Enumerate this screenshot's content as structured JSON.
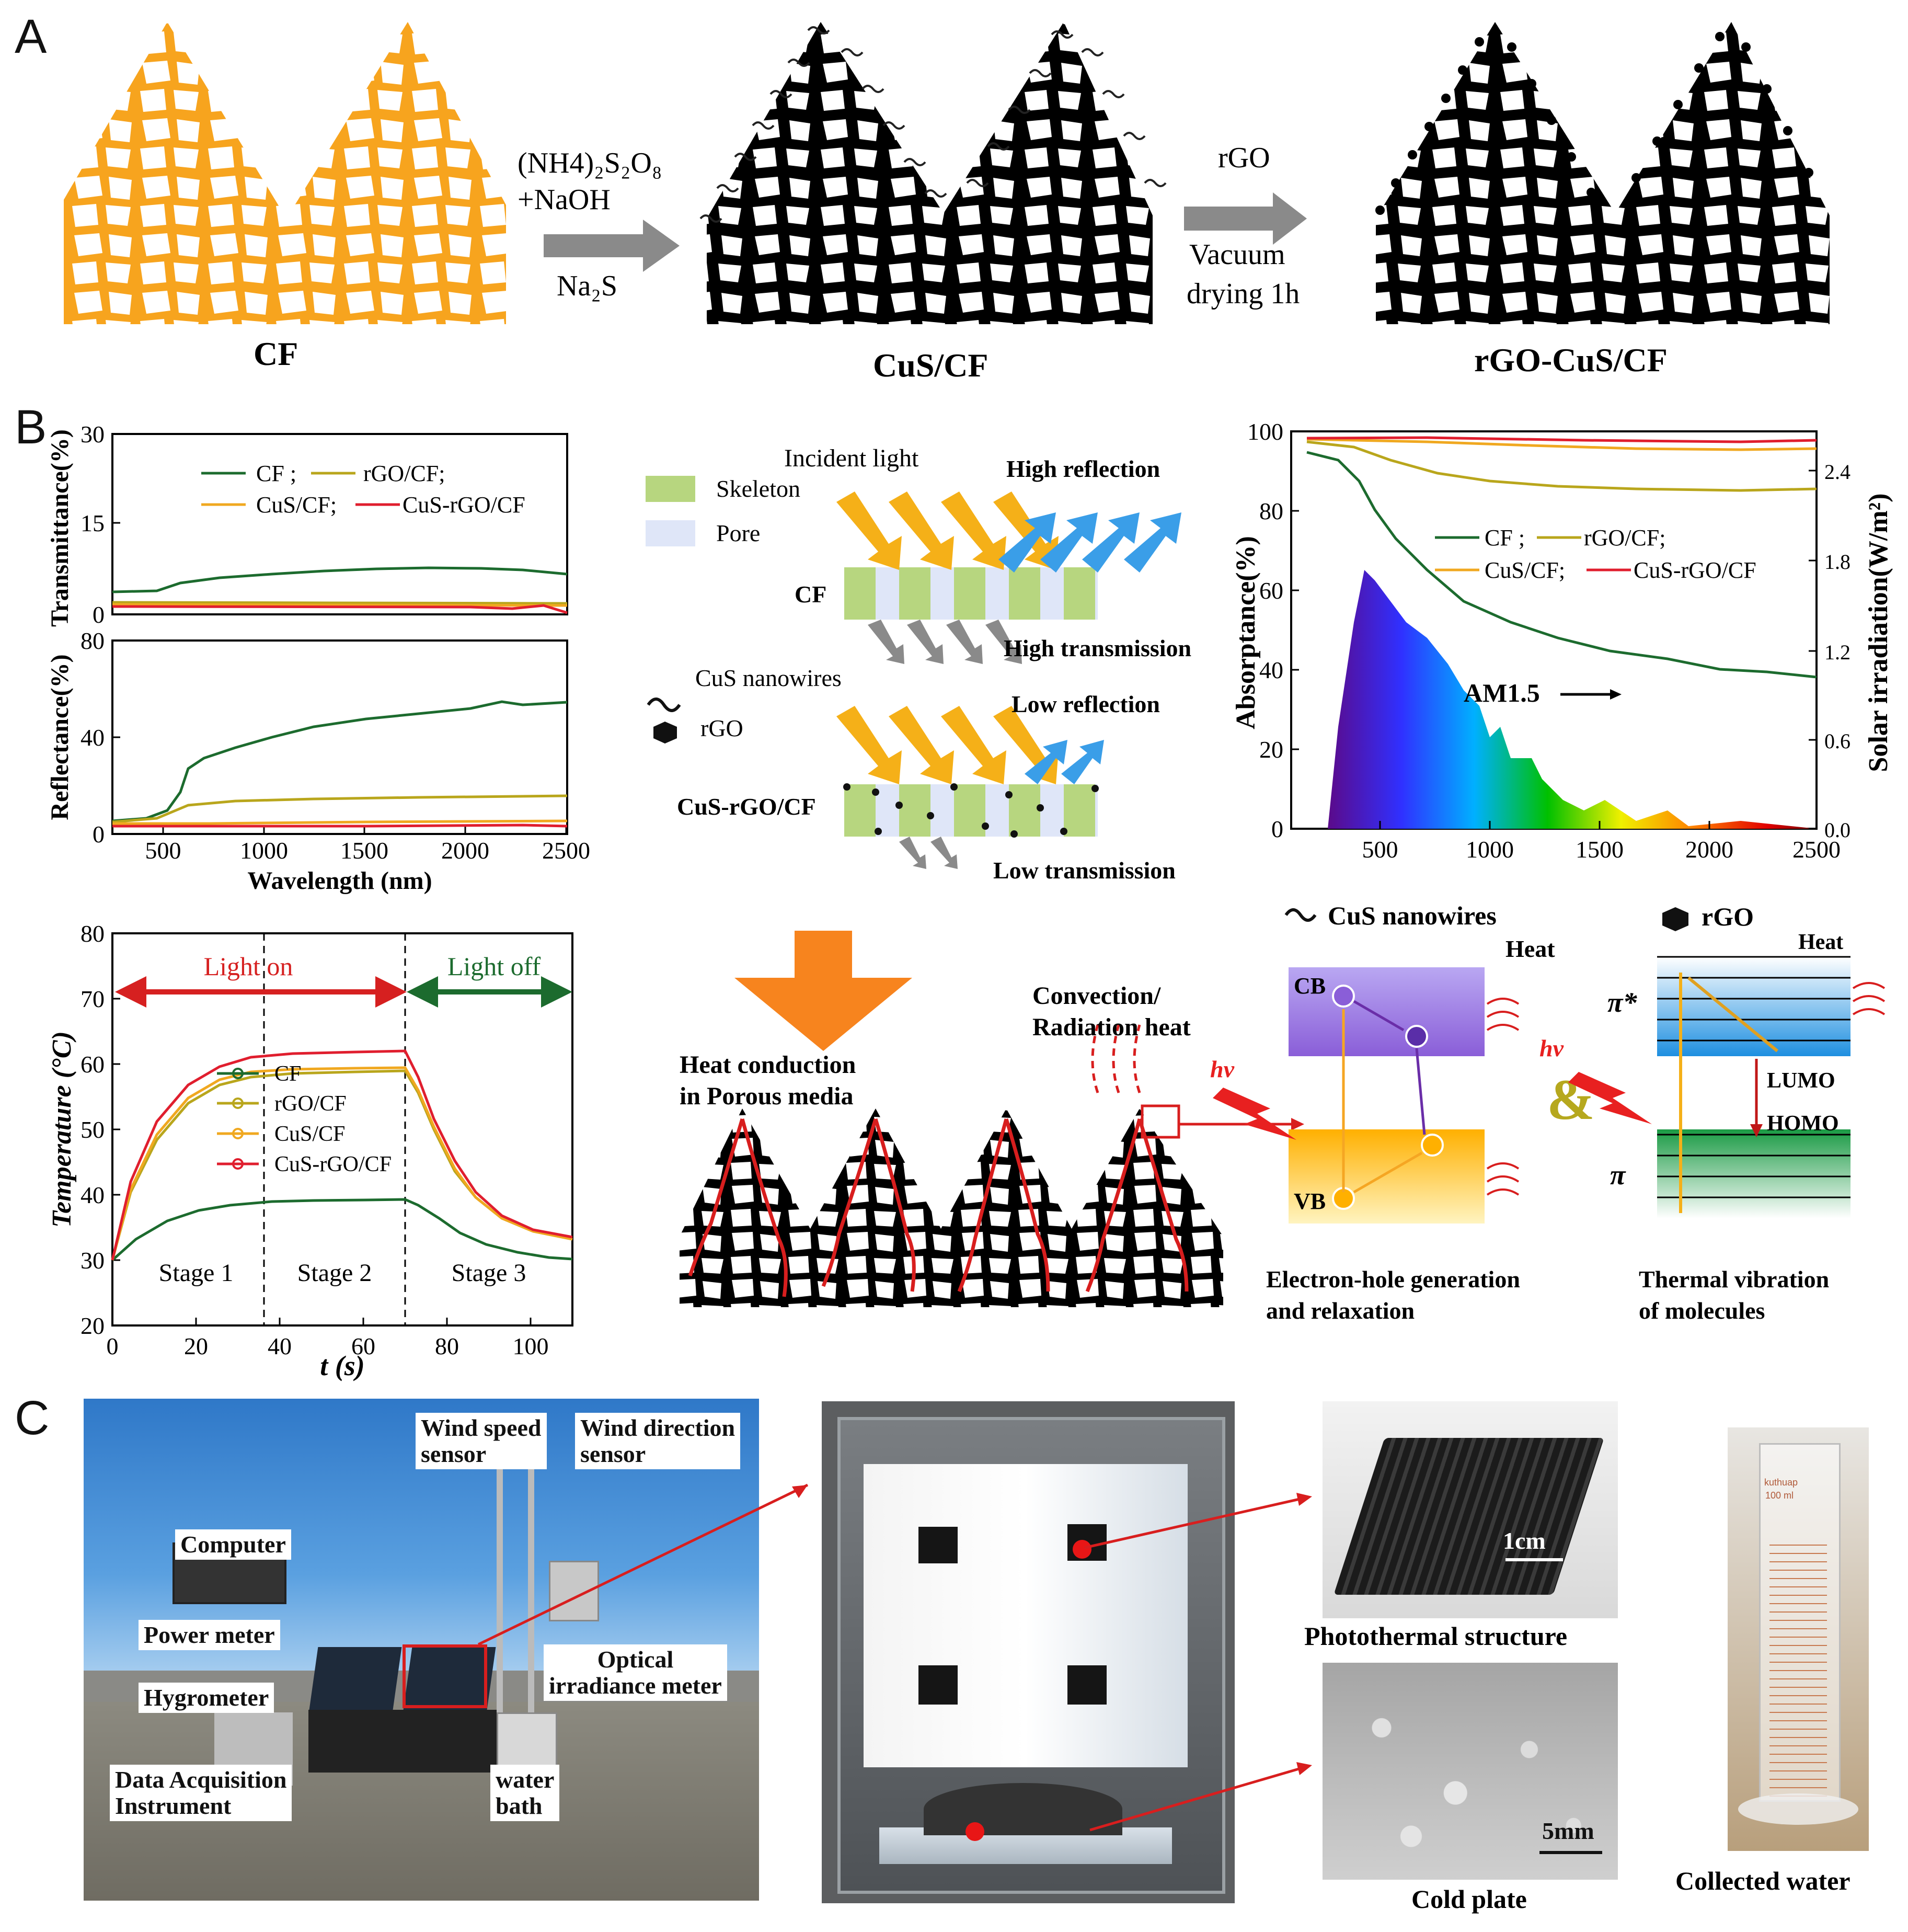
{
  "panels": {
    "a": "A",
    "b": "B",
    "c": "C"
  },
  "panelA": {
    "cf_label": "CF",
    "cus_label": "CuS/CF",
    "rgo_label": "rGO-CuS/CF",
    "step1_line1": "(NH4)₂S₂O₈",
    "step1_line2": "+NaOH",
    "step1_line3": "Na₂S",
    "step2_line1": "rGO",
    "step2_line2": "Vacuum",
    "step2_line3": "drying 1h"
  },
  "transmittance": {
    "ylabel": "Transmittance(%)",
    "yticks": [
      "30",
      "15",
      "0"
    ],
    "legend": [
      "CF ;",
      "rGO/CF;",
      "CuS/CF;",
      "CuS-rGO/CF"
    ]
  },
  "reflectance": {
    "ylabel": "Reflectance(%)",
    "yticks": [
      "80",
      "40",
      "0"
    ],
    "xticks": [
      "500",
      "1000",
      "1500",
      "2000",
      "2500"
    ],
    "xlabel": "Wavelength (nm)"
  },
  "schematic": {
    "incident": "Incident light",
    "skeleton": "Skeleton",
    "pore": "Pore",
    "high_reflection": "High reflection",
    "high_transmission": "High transmission",
    "cf": "CF",
    "cus_nanowires": "CuS nanowires",
    "rgo": "rGO",
    "low_reflection": "Low reflection",
    "low_transmission": "Low transmission",
    "cus_rgo_cf": "CuS-rGO/CF"
  },
  "absorptance": {
    "ylabel": "Absorptance(%)",
    "y2label": "Solar irradiation(W/m²)",
    "yticks": [
      "100",
      "80",
      "60",
      "40",
      "20",
      "0"
    ],
    "y2ticks": [
      "2.4",
      "1.8",
      "1.2",
      "0.6",
      "0.0"
    ],
    "xticks": [
      "500",
      "1000",
      "1500",
      "2000",
      "2500"
    ],
    "legend": [
      "CF ;",
      "rGO/CF;",
      "CuS/CF;",
      "CuS-rGO/CF"
    ],
    "am": "AM1.5"
  },
  "temperature": {
    "ylabel": "Temperature (°C)",
    "xlabel": "t (s)",
    "yticks": [
      "80",
      "70",
      "60",
      "50",
      "40",
      "30",
      "20"
    ],
    "xticks": [
      "0",
      "20",
      "40",
      "60",
      "80",
      "100"
    ],
    "light_on": "Light on",
    "light_off": "Light off",
    "stages": [
      "Stage 1",
      "Stage 2",
      "Stage 3"
    ],
    "legend": [
      "CF",
      "rGO/CF",
      "CuS/CF",
      "CuS-rGO/CF"
    ]
  },
  "mechanism": {
    "heat_conduction_1": "Heat  conduction",
    "heat_conduction_2": "in Porous media",
    "convection_1": "Convection/",
    "convection_2": "Radiation heat",
    "hv": "hv",
    "cus_nanowires": "CuS nanowires",
    "rgo": "rGO",
    "heat": "Heat",
    "cb": "CB",
    "vb": "VB",
    "pi_star": "π*",
    "pi": "π",
    "lumo": "LUMO",
    "homo": "HOMO",
    "amp": "&",
    "eh_1": "Electron-hole generation",
    "eh_2": "and relaxation",
    "tv_1": "Thermal vibration",
    "tv_2": "of molecules"
  },
  "panelC": {
    "wind_speed": "Wind speed\nsensor",
    "wind_direction": "Wind direction\nsensor",
    "computer": "Computer",
    "power_meter": "Power meter",
    "hygrometer": "Hygrometer",
    "data_acq": "Data Acquisition\nInstrument",
    "water_bath": "water\nbath",
    "optical": "Optical\nirradiance meter",
    "scale_1cm": "1cm",
    "scale_5mm": "5mm",
    "photothermal": "Photothermal structure",
    "cold_plate": "Cold plate",
    "collected": "Collected water",
    "cylinder_brand": "kuthuap",
    "cylinder_volume": "100 ml"
  }
}
